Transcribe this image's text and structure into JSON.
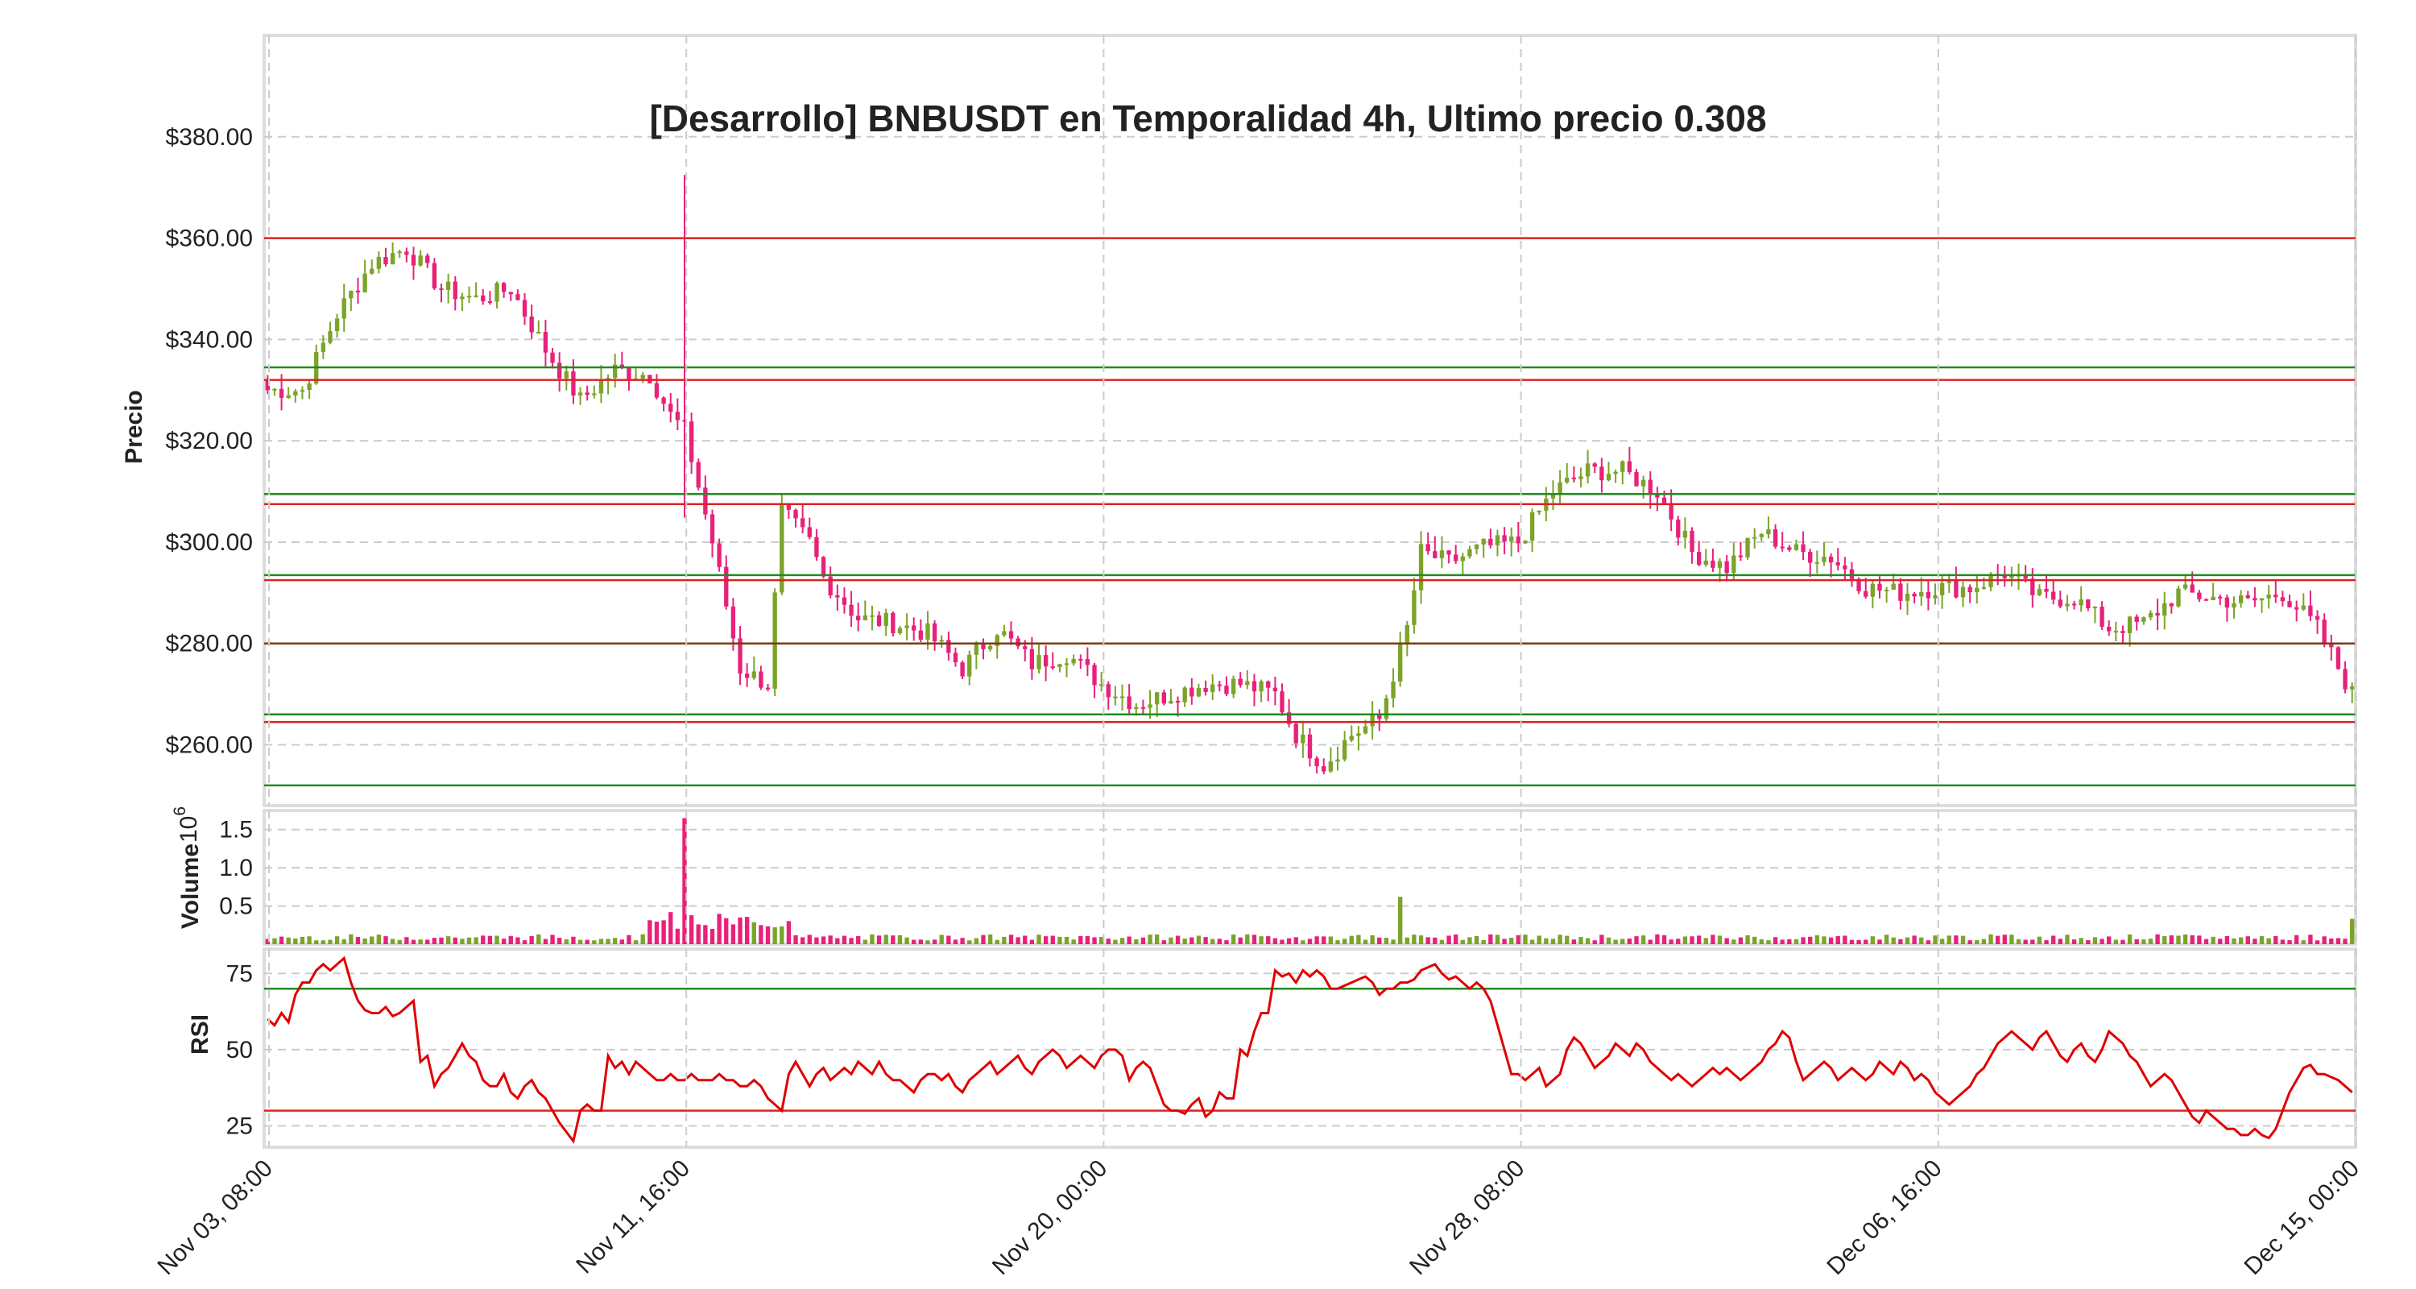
{
  "chart_data": {
    "type": "candlestick",
    "title": "[Desarrollo] BNBUSDT en Temporalidad 4h, Ultimo precio 0.308",
    "colors": {
      "up": "#7ba428",
      "down": "#e8217a",
      "rsi": "#e00000",
      "support": "#228b22",
      "resistance": "#dd2222",
      "pivot": "#7a3b10"
    },
    "x_ticks": [
      "Nov 03, 08:00",
      "Nov 11, 16:00",
      "Nov 20, 00:00",
      "Nov 28, 08:00",
      "Dec 06, 16:00",
      "Dec 15, 00:00"
    ],
    "price_panel": {
      "ylabel": "Precio",
      "ylim": [
        248,
        400
      ],
      "y_ticks": [
        {
          "v": 260,
          "label": "$260.00"
        },
        {
          "v": 280,
          "label": "$280.00"
        },
        {
          "v": 300,
          "label": "$300.00"
        },
        {
          "v": 320,
          "label": "$320.00"
        },
        {
          "v": 340,
          "label": "$340.00"
        },
        {
          "v": 360,
          "label": "$360.00"
        },
        {
          "v": 380,
          "label": "$380.00"
        }
      ],
      "resistance_levels": [
        360,
        332,
        307.5,
        292.5,
        280,
        264.5
      ],
      "support_levels": [
        334.5,
        309.5,
        293.5,
        280,
        266,
        252
      ]
    },
    "volume_panel": {
      "ylabel": "Volume",
      "scale_label": "10",
      "scale_exp": "6",
      "ylim": [
        0,
        1.75
      ],
      "y_ticks": [
        {
          "v": 0.5,
          "label": "0.5"
        },
        {
          "v": 1.0,
          "label": "1.0"
        },
        {
          "v": 1.5,
          "label": "1.5"
        }
      ]
    },
    "rsi_panel": {
      "ylabel": "RSI",
      "ylim": [
        18,
        83
      ],
      "y_ticks": [
        {
          "v": 25,
          "label": "25"
        },
        {
          "v": 50,
          "label": "50"
        },
        {
          "v": 75,
          "label": "75"
        }
      ],
      "overbought": 70,
      "oversold": 30,
      "values": [
        60,
        58,
        62,
        59,
        68,
        72,
        72,
        76,
        78,
        76,
        78,
        80,
        72,
        66,
        63,
        62,
        62,
        64,
        61,
        62,
        64,
        66,
        46,
        48,
        38,
        42,
        44,
        48,
        52,
        48,
        46,
        40,
        38,
        38,
        42,
        36,
        34,
        38,
        40,
        36,
        34,
        30,
        26,
        23,
        20,
        30,
        32,
        30,
        30,
        48,
        44,
        46,
        42,
        46,
        44,
        42,
        40,
        40,
        42,
        40,
        40,
        42,
        40,
        40,
        40,
        42,
        40,
        40,
        38,
        38,
        40,
        38,
        34,
        32,
        30,
        42,
        46,
        42,
        38,
        42,
        44,
        40,
        42,
        44,
        42,
        46,
        44,
        42,
        46,
        42,
        40,
        40,
        38,
        36,
        40,
        42,
        42,
        40,
        42,
        38,
        36,
        40,
        42,
        44,
        46,
        42,
        44,
        46,
        48,
        44,
        42,
        46,
        48,
        50,
        48,
        44,
        46,
        48,
        46,
        44,
        48,
        50,
        50,
        48,
        40,
        44,
        46,
        44,
        38,
        32,
        30,
        30,
        29,
        32,
        34,
        28,
        30,
        36,
        34,
        34,
        50,
        48,
        56,
        62,
        62,
        76,
        74,
        75,
        72,
        76,
        74,
        76,
        74,
        70,
        70,
        71,
        72,
        73,
        74,
        72,
        68,
        70,
        70,
        72,
        72,
        73,
        76,
        77,
        78,
        75,
        73,
        74,
        72,
        70,
        72,
        70,
        66,
        58,
        50,
        42,
        42,
        40,
        42,
        44,
        38,
        40,
        42,
        50,
        54,
        52,
        48,
        44,
        46,
        48,
        52,
        50,
        48,
        52,
        50,
        46,
        44,
        42,
        40,
        42,
        40,
        38,
        40,
        42,
        44,
        42,
        44,
        42,
        40,
        42,
        44,
        46,
        50,
        52,
        56,
        54,
        46,
        40,
        42,
        44,
        46,
        44,
        40,
        42,
        44,
        42,
        40,
        42,
        46,
        44,
        42,
        46,
        44,
        40,
        42,
        40,
        36,
        34,
        32,
        34,
        36,
        38,
        42,
        44,
        48,
        52,
        54,
        56,
        54,
        52,
        50,
        54,
        56,
        52,
        48,
        46,
        50,
        52,
        48,
        46,
        50,
        56,
        54,
        52,
        48,
        46,
        42,
        38,
        40,
        42,
        40,
        36,
        32,
        28,
        26,
        30,
        28,
        26,
        24,
        24,
        22,
        22,
        24,
        22,
        21,
        24,
        30,
        36,
        40,
        44,
        45,
        42,
        42,
        41,
        40,
        38,
        36
      ]
    }
  }
}
